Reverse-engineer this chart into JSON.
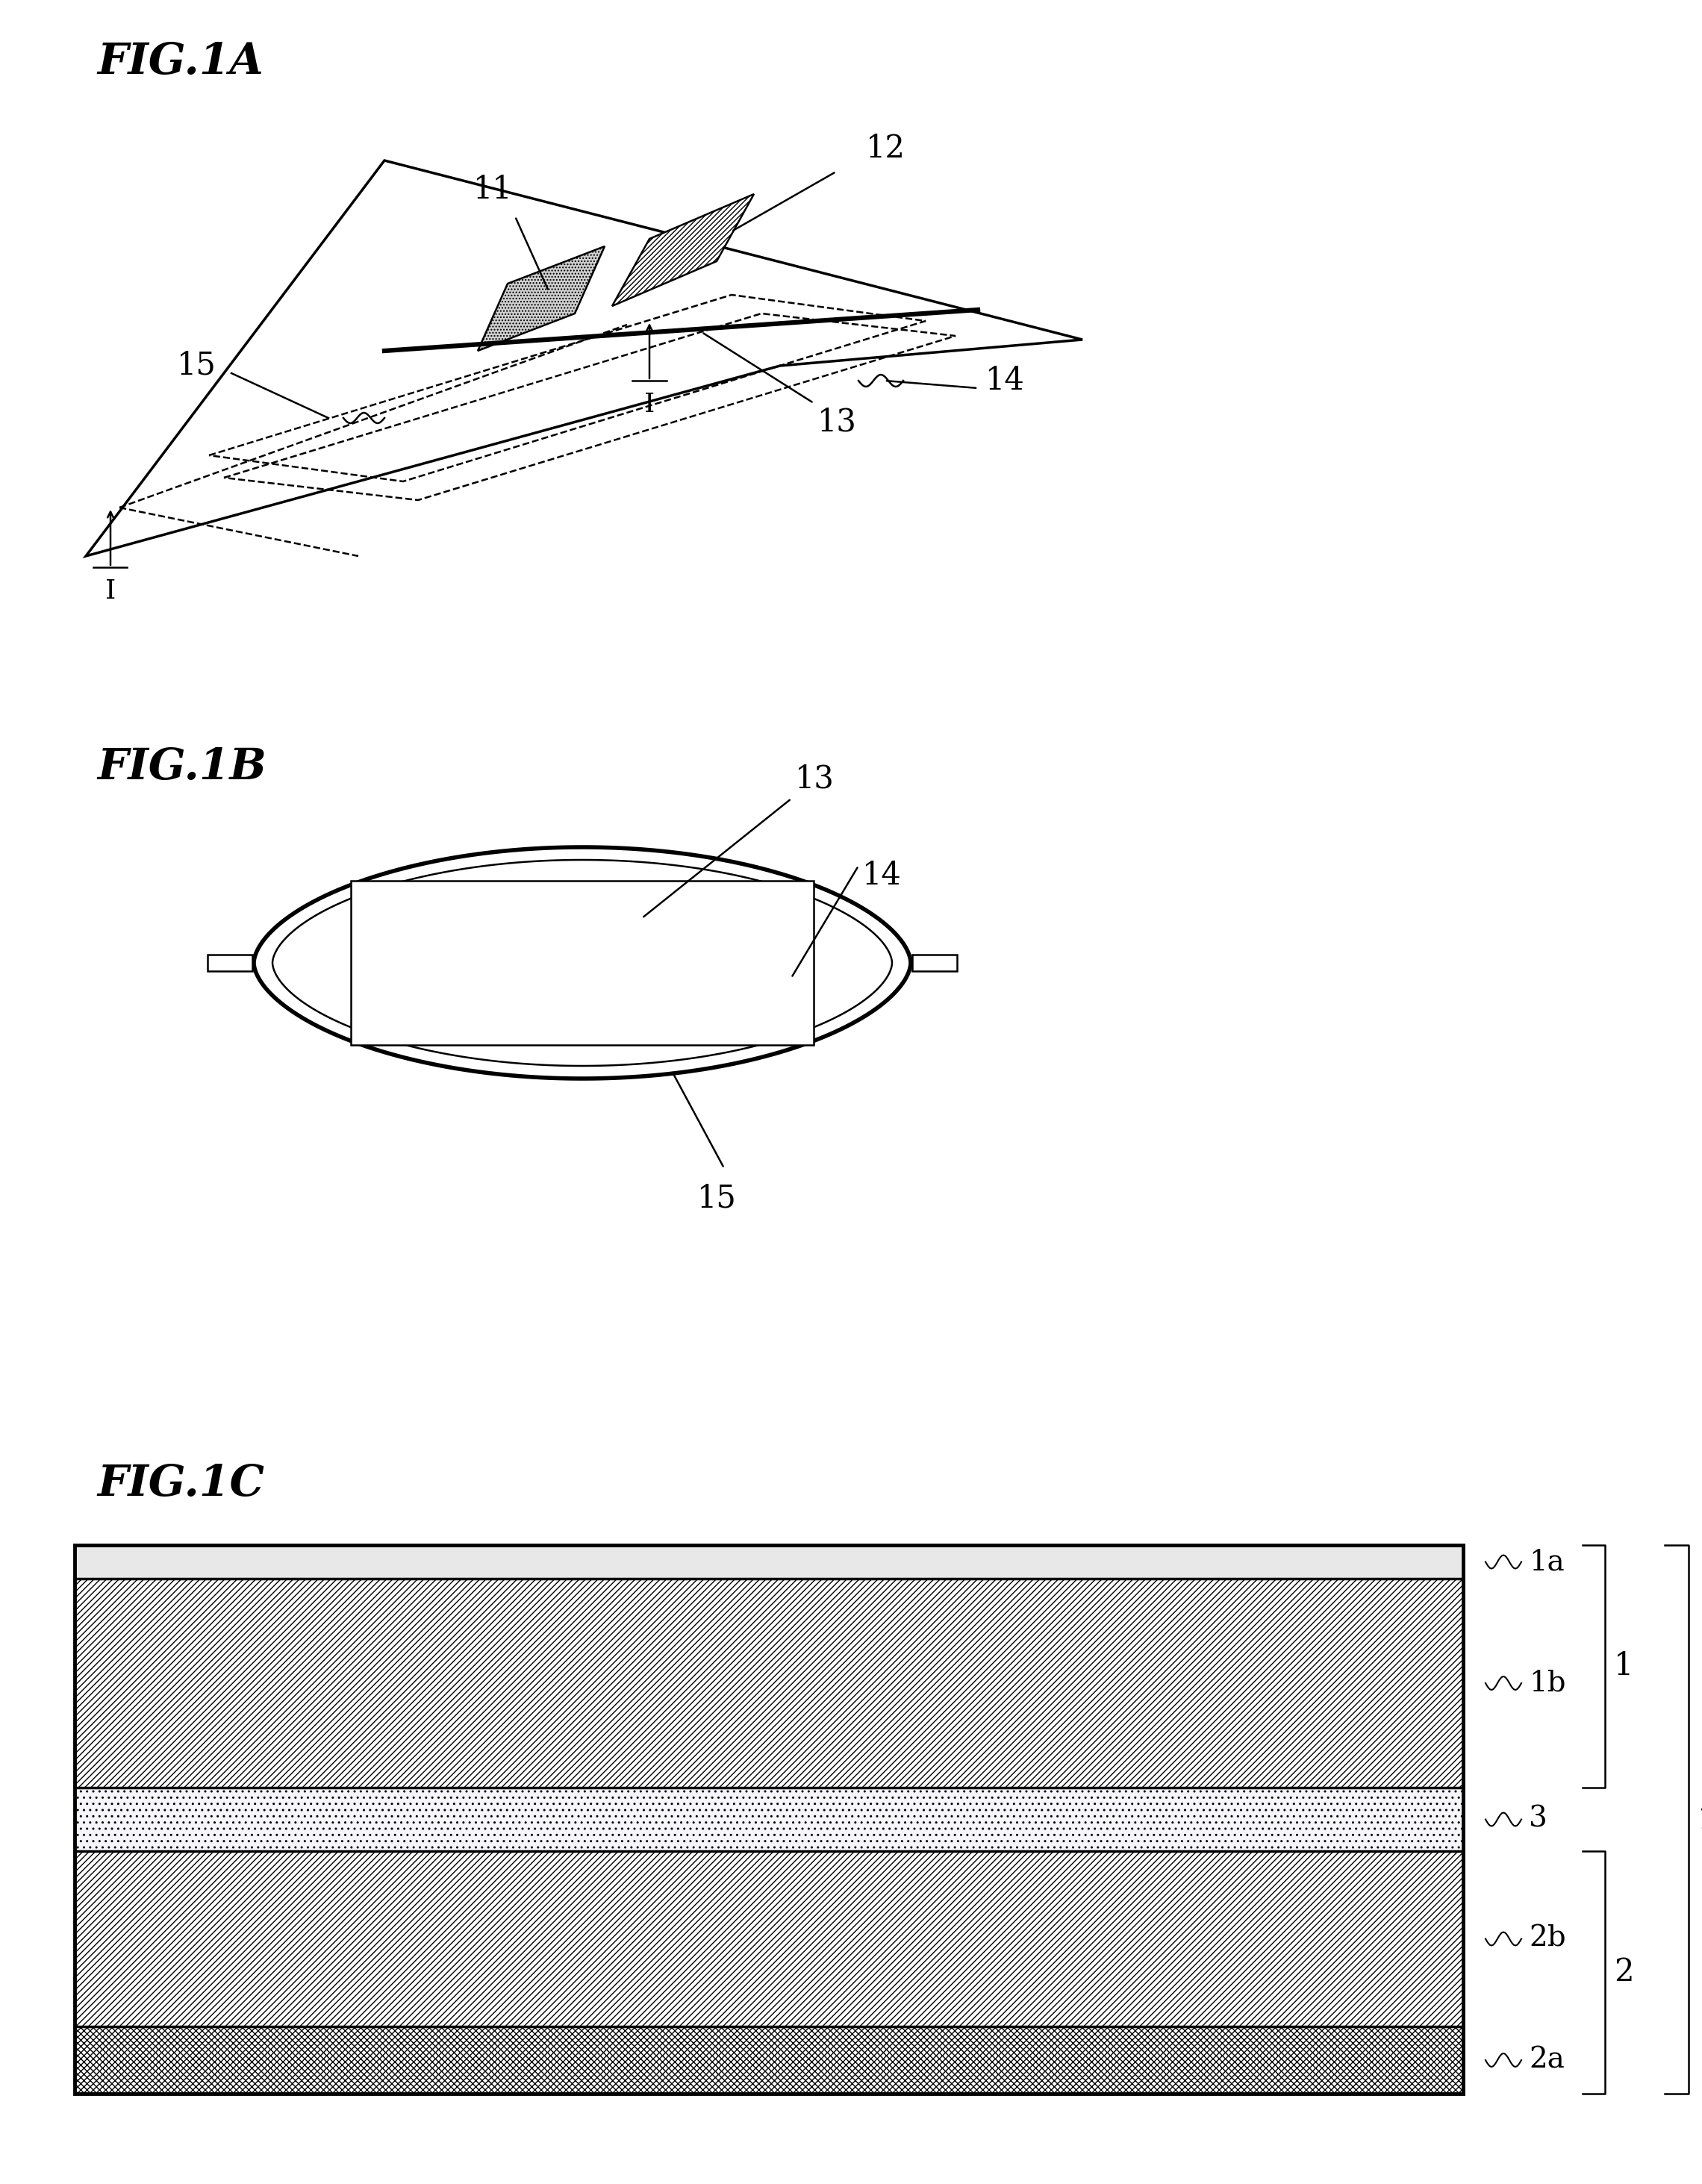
{
  "bg_color": "#ffffff",
  "fig_width": 22.8,
  "fig_height": 29.26,
  "fig1a_title": "FIG.1A",
  "fig1b_title": "FIG.1B",
  "fig1c_title": "FIG.1C",
  "label_color": "#000000",
  "line_color": "#000000"
}
